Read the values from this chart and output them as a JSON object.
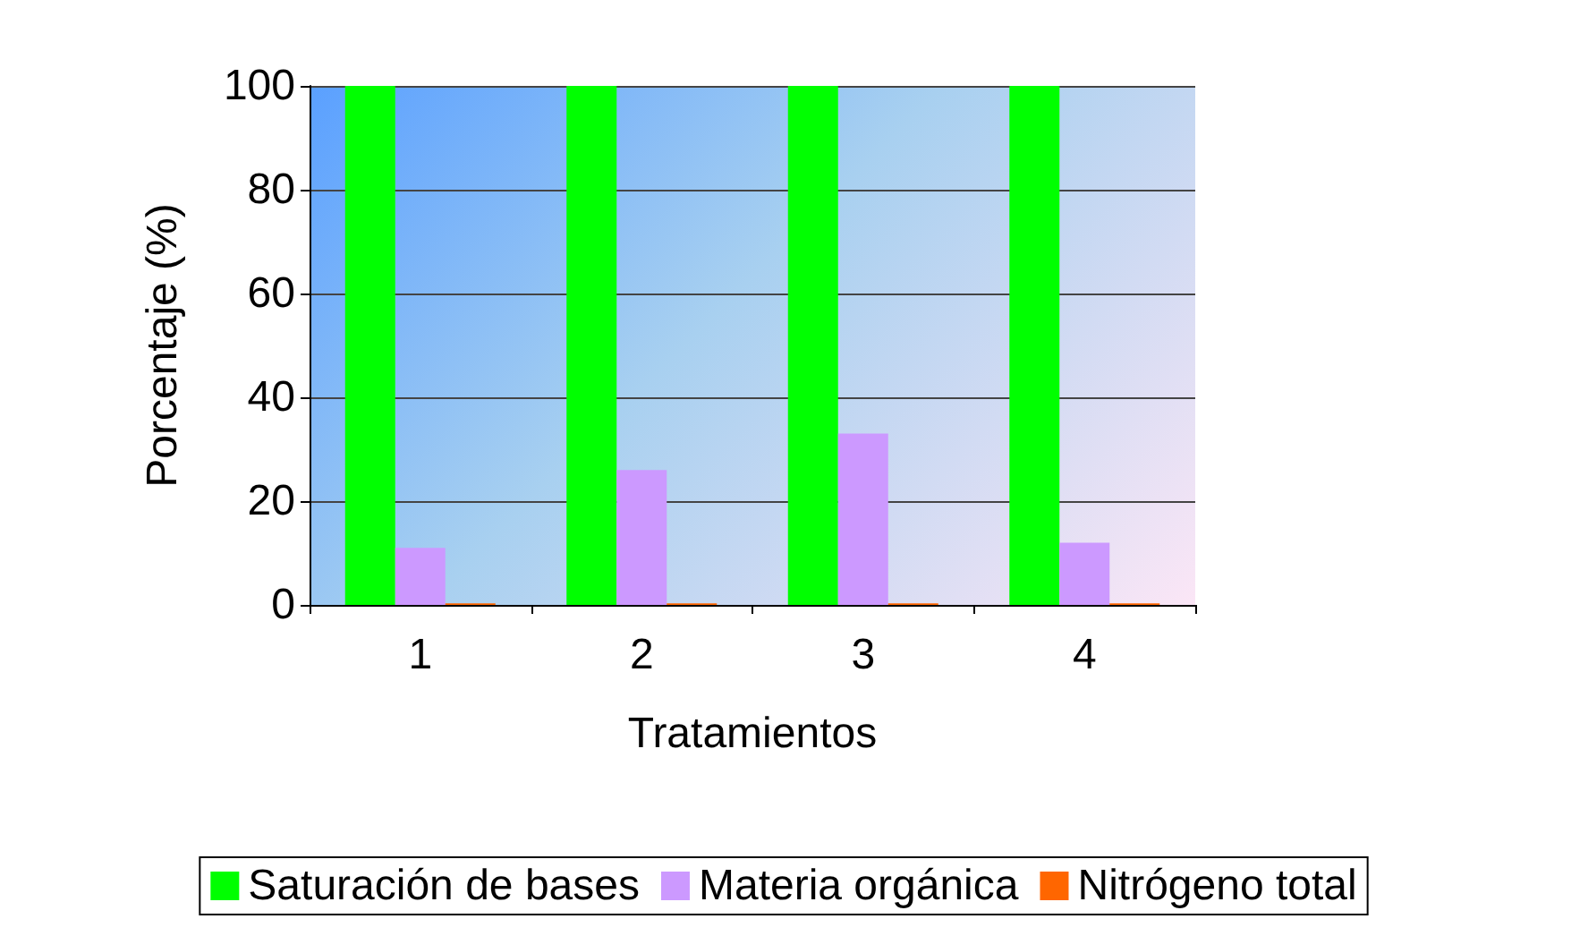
{
  "chart_data": {
    "type": "bar",
    "xlabel": "Tratamientos",
    "ylabel": "Porcentaje (%)",
    "categories": [
      "1",
      "2",
      "3",
      "4"
    ],
    "series": [
      {
        "name": "Saturación de bases",
        "color": "#00ff00",
        "values": [
          100,
          100,
          100,
          100
        ]
      },
      {
        "name": "Materia orgánica",
        "color": "#cc99ff",
        "values": [
          11,
          26,
          33,
          12
        ]
      },
      {
        "name": "Nitrógeno total",
        "color": "#ff6600",
        "values": [
          0.3,
          0.3,
          0.3,
          0.3
        ]
      }
    ],
    "ylim": [
      0,
      100
    ],
    "yticks": [
      0,
      20,
      40,
      60,
      80,
      100
    ],
    "grid": "y",
    "legend": "bottom"
  }
}
